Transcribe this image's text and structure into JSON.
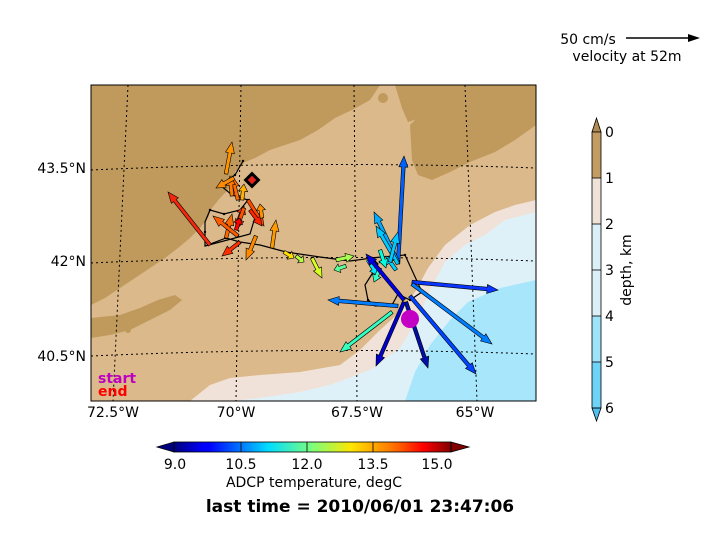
{
  "map": {
    "lat_labels": [
      "43.5°N",
      "42°N",
      "40.5°N"
    ],
    "lon_labels": [
      "72.5°W",
      "70°W",
      "67.5°W",
      "65°W"
    ],
    "start_label": "start",
    "end_label": "end",
    "colors": {
      "land": "#bf9a5c",
      "shelf": "#dbb98a",
      "slope": "#f0e2d8",
      "deep1": "#dff1f8",
      "deep2": "#a7e6fb",
      "start_marker": "#c400c4",
      "end_marker": "#e8221e",
      "start_text": "#c000c0",
      "end_text": "#ff0000"
    }
  },
  "scale": {
    "label": "50 cm/s",
    "sublabel": "velocity at 52m"
  },
  "depth_colorbar": {
    "label": "depth, km",
    "ticks": [
      "0",
      "1",
      "2",
      "3",
      "4",
      "5",
      "6"
    ],
    "colors": [
      "#c39c63",
      "#efe2d9",
      "#dbeff7",
      "#9fe3fa",
      "#6fd3f7"
    ]
  },
  "temp_colorbar": {
    "label": "ADCP temperature, degC",
    "ticks": [
      "9.0",
      "10.5",
      "12.0",
      "13.5",
      "15.0"
    ],
    "range": [
      8.25,
      15.75
    ],
    "colormap": "jet"
  },
  "footer": {
    "last_time": "last time = 2010/06/01 23:47:06"
  }
}
